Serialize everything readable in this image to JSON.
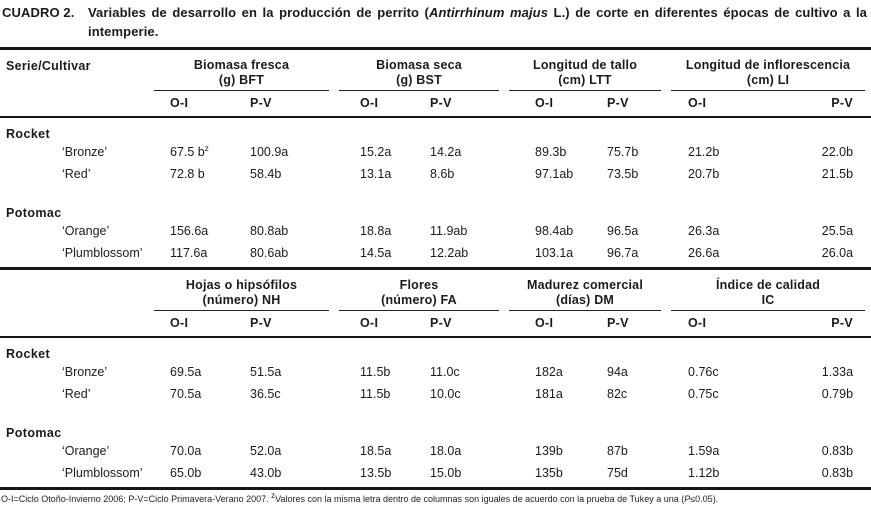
{
  "title": {
    "label": "CUADRO 2.",
    "t1": "Variables de desarrollo en la producción de perrito (",
    "species": "Antirrhinum majus",
    "t2": " L.) de corte en diferentes épocas de cultivo a la intemperie."
  },
  "table": {
    "row_header": "Serie/Cultivar",
    "subcols": [
      "O-I",
      "P-V"
    ],
    "blocks": [
      {
        "groups": [
          {
            "line1": "Biomasa fresca",
            "line2": "(g) BFT"
          },
          {
            "line1": "Biomasa seca",
            "line2": "(g) BST"
          },
          {
            "line1": "Longitud de tallo",
            "line2": "(cm) LTT"
          },
          {
            "line1": "Longitud de inflorescencia",
            "line2": "(cm) LI"
          }
        ],
        "series": [
          {
            "name": "Rocket",
            "cultivars": [
              {
                "name": "‘Bronze’",
                "values": [
                  {
                    "v": "67.5 b",
                    "sup": "z"
                  },
                  "100.9a",
                  "15.2a",
                  "14.2a",
                  "89.3b",
                  "75.7b",
                  "21.2b",
                  "22.0b"
                ]
              },
              {
                "name": "‘Red’",
                "values": [
                  "72.8 b",
                  "58.4b",
                  "13.1a",
                  "8.6b",
                  "97.1ab",
                  "73.5b",
                  "20.7b",
                  "21.5b"
                ]
              }
            ]
          },
          {
            "name": "Potomac",
            "cultivars": [
              {
                "name": "‘Orange’",
                "values": [
                  "156.6a",
                  "80.8ab",
                  "18.8a",
                  "11.9ab",
                  "98.4ab",
                  "96.5a",
                  "26.3a",
                  "25.5a"
                ]
              },
              {
                "name": "‘Plumblossom’",
                "values": [
                  "117.6a",
                  "80.6ab",
                  "14.5a",
                  "12.2ab",
                  "103.1a",
                  "96.7a",
                  "26.6a",
                  "26.0a"
                ]
              }
            ]
          }
        ]
      },
      {
        "groups": [
          {
            "line1": "Hojas o hipsófilos",
            "line2": "(número) NH"
          },
          {
            "line1": "Flores",
            "line2": "(número) FA"
          },
          {
            "line1": "Madurez comercial",
            "line2": "(días) DM"
          },
          {
            "line1": "Índice de calidad",
            "line2": "IC"
          }
        ],
        "series": [
          {
            "name": "Rocket",
            "cultivars": [
              {
                "name": "‘Bronze’",
                "values": [
                  "69.5a",
                  "51.5a",
                  "11.5b",
                  "11.0c",
                  "182a",
                  "94a",
                  "0.76c",
                  "1.33a"
                ]
              },
              {
                "name": "‘Red’",
                "values": [
                  "70.5a",
                  "36.5c",
                  "11.5b",
                  "10.0c",
                  "181a",
                  "82c",
                  "0.75c",
                  "0.79b"
                ]
              }
            ]
          },
          {
            "name": "Potomac",
            "cultivars": [
              {
                "name": "‘Orange’",
                "values": [
                  "70.0a",
                  "52.0a",
                  "18.5a",
                  "18.0a",
                  "139b",
                  "87b",
                  "1.59a",
                  "0.83b"
                ]
              },
              {
                "name": "‘Plumblossom’",
                "values": [
                  "65.0b",
                  "43.0b",
                  "13.5b",
                  "15.0b",
                  "135b",
                  "75d",
                  "1.12b",
                  "0.83b"
                ]
              }
            ]
          }
        ]
      }
    ]
  },
  "footnote": {
    "part1": "O-I=Ciclo Otoño-Invierno 2006; P-V=Ciclo Primavera-Verano 2007. ",
    "sup": "z",
    "part2": "Valores con la misma letra dentro de columnas son iguales de acuerdo con la prueba de Tukey a una (",
    "p": "P",
    "part3": "≤0.05)."
  }
}
